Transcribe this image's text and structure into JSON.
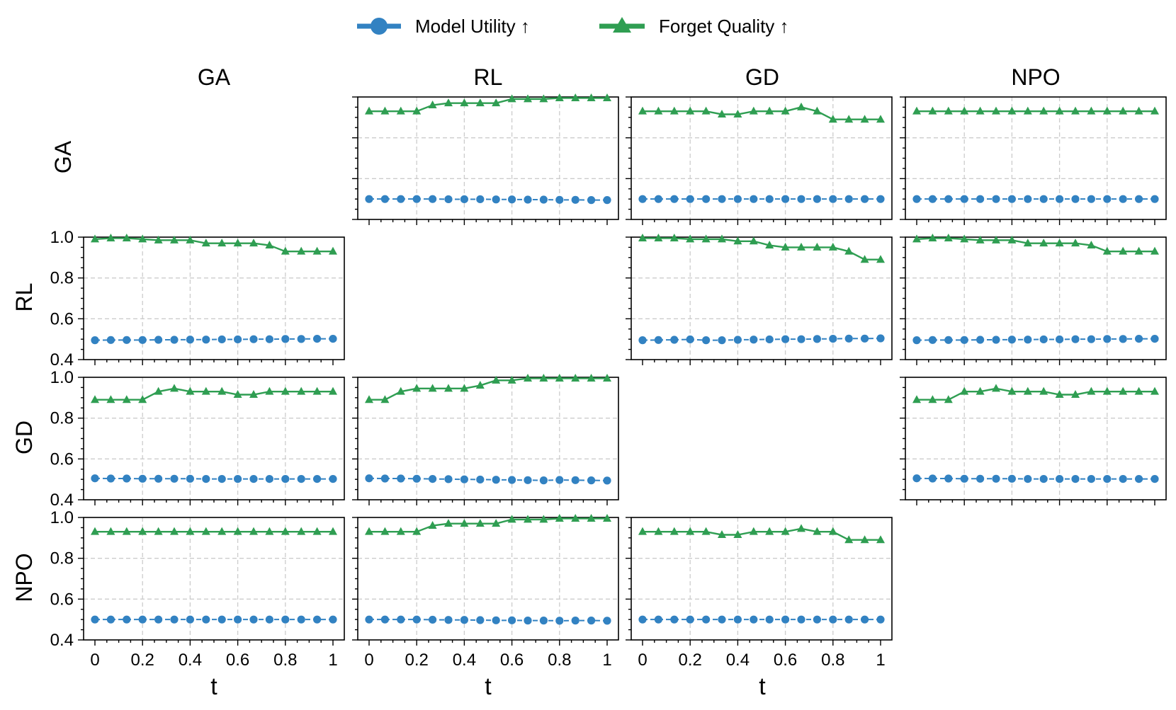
{
  "legend": {
    "items": [
      {
        "label": "Model Utility ↑",
        "series": "mu"
      },
      {
        "label": "Forget Quality ↑",
        "series": "fq"
      }
    ]
  },
  "colors": {
    "mu": "#3282c2",
    "fq": "#2f9e52",
    "grid": "#cccccc"
  },
  "col_titles": [
    "GA",
    "RL",
    "GD",
    "NPO"
  ],
  "row_titles": [
    "GA",
    "RL",
    "GD",
    "NPO"
  ],
  "xlabel": "t",
  "chart_data": {
    "type": "line",
    "title": "",
    "xlabel": "t",
    "ylabel": "",
    "xlim": [
      0,
      1
    ],
    "ylim": [
      0.4,
      1.0
    ],
    "x_ticks": [
      "0",
      "0.2",
      "0.4",
      "0.6",
      "0.8",
      "1"
    ],
    "y_ticks": [
      "0.4",
      "0.6",
      "0.8",
      "1.0"
    ],
    "x": [
      0,
      0.0667,
      0.1333,
      0.2,
      0.2667,
      0.3333,
      0.4,
      0.4667,
      0.5333,
      0.6,
      0.6667,
      0.7333,
      0.8,
      0.8667,
      0.9333,
      1.0
    ],
    "series_names": [
      "Model Utility ↑",
      "Forget Quality ↑"
    ],
    "panels": [
      {
        "row": "GA",
        "col": "RL",
        "mu": [
          0.5,
          0.5,
          0.5,
          0.5,
          0.5,
          0.499,
          0.499,
          0.499,
          0.498,
          0.498,
          0.497,
          0.497,
          0.496,
          0.496,
          0.495,
          0.495
        ],
        "fq": [
          0.93,
          0.93,
          0.93,
          0.93,
          0.96,
          0.97,
          0.97,
          0.97,
          0.97,
          0.99,
          0.99,
          0.99,
          0.995,
          0.995,
          0.995,
          0.995
        ]
      },
      {
        "row": "GA",
        "col": "GD",
        "mu": [
          0.5,
          0.5,
          0.5,
          0.5,
          0.5,
          0.5,
          0.5,
          0.5,
          0.5,
          0.5,
          0.5,
          0.5,
          0.5,
          0.5,
          0.5,
          0.5
        ],
        "fq": [
          0.93,
          0.93,
          0.93,
          0.93,
          0.93,
          0.915,
          0.915,
          0.93,
          0.93,
          0.93,
          0.95,
          0.93,
          0.89,
          0.89,
          0.89,
          0.89
        ]
      },
      {
        "row": "GA",
        "col": "NPO",
        "mu": [
          0.5,
          0.5,
          0.5,
          0.5,
          0.5,
          0.5,
          0.5,
          0.5,
          0.5,
          0.5,
          0.5,
          0.5,
          0.5,
          0.5,
          0.5,
          0.5
        ],
        "fq": [
          0.93,
          0.93,
          0.93,
          0.93,
          0.93,
          0.93,
          0.93,
          0.93,
          0.93,
          0.93,
          0.93,
          0.93,
          0.93,
          0.93,
          0.93,
          0.93
        ]
      },
      {
        "row": "RL",
        "col": "GA",
        "mu": [
          0.495,
          0.496,
          0.496,
          0.496,
          0.497,
          0.497,
          0.498,
          0.498,
          0.499,
          0.499,
          0.5,
          0.5,
          0.501,
          0.501,
          0.502,
          0.502
        ],
        "fq": [
          0.99,
          0.995,
          0.995,
          0.99,
          0.985,
          0.985,
          0.985,
          0.97,
          0.97,
          0.97,
          0.97,
          0.96,
          0.93,
          0.93,
          0.93,
          0.93
        ]
      },
      {
        "row": "RL",
        "col": "GD",
        "mu": [
          0.495,
          0.496,
          0.497,
          0.499,
          0.495,
          0.495,
          0.497,
          0.498,
          0.499,
          0.5,
          0.5,
          0.501,
          0.502,
          0.503,
          0.503,
          0.504
        ],
        "fq": [
          0.995,
          0.995,
          0.995,
          0.99,
          0.99,
          0.99,
          0.98,
          0.98,
          0.96,
          0.95,
          0.95,
          0.95,
          0.95,
          0.93,
          0.89,
          0.89
        ]
      },
      {
        "row": "RL",
        "col": "NPO",
        "mu": [
          0.495,
          0.496,
          0.496,
          0.496,
          0.497,
          0.497,
          0.498,
          0.498,
          0.499,
          0.499,
          0.5,
          0.5,
          0.501,
          0.501,
          0.502,
          0.502
        ],
        "fq": [
          0.99,
          0.995,
          0.995,
          0.99,
          0.985,
          0.985,
          0.985,
          0.97,
          0.97,
          0.97,
          0.97,
          0.96,
          0.93,
          0.93,
          0.93,
          0.93
        ]
      },
      {
        "row": "GD",
        "col": "GA",
        "mu": [
          0.505,
          0.504,
          0.504,
          0.503,
          0.503,
          0.503,
          0.503,
          0.502,
          0.502,
          0.502,
          0.502,
          0.502,
          0.502,
          0.502,
          0.502,
          0.502
        ],
        "fq": [
          0.89,
          0.89,
          0.89,
          0.89,
          0.93,
          0.945,
          0.93,
          0.93,
          0.93,
          0.915,
          0.915,
          0.93,
          0.93,
          0.93,
          0.93,
          0.93
        ]
      },
      {
        "row": "GD",
        "col": "RL",
        "mu": [
          0.505,
          0.504,
          0.504,
          0.503,
          0.502,
          0.501,
          0.5,
          0.499,
          0.498,
          0.497,
          0.496,
          0.495,
          0.497,
          0.496,
          0.495,
          0.494
        ],
        "fq": [
          0.89,
          0.89,
          0.93,
          0.945,
          0.945,
          0.945,
          0.945,
          0.96,
          0.985,
          0.985,
          0.995,
          0.995,
          0.995,
          0.995,
          0.995,
          0.995
        ]
      },
      {
        "row": "GD",
        "col": "NPO",
        "mu": [
          0.505,
          0.504,
          0.504,
          0.503,
          0.503,
          0.503,
          0.503,
          0.502,
          0.502,
          0.502,
          0.502,
          0.502,
          0.502,
          0.502,
          0.502,
          0.502
        ],
        "fq": [
          0.89,
          0.89,
          0.89,
          0.93,
          0.93,
          0.945,
          0.93,
          0.93,
          0.93,
          0.915,
          0.915,
          0.93,
          0.93,
          0.93,
          0.93,
          0.93
        ]
      },
      {
        "row": "NPO",
        "col": "GA",
        "mu": [
          0.5,
          0.5,
          0.5,
          0.5,
          0.5,
          0.5,
          0.5,
          0.5,
          0.5,
          0.5,
          0.5,
          0.5,
          0.5,
          0.5,
          0.5,
          0.5
        ],
        "fq": [
          0.93,
          0.93,
          0.93,
          0.93,
          0.93,
          0.93,
          0.93,
          0.93,
          0.93,
          0.93,
          0.93,
          0.93,
          0.93,
          0.93,
          0.93,
          0.93
        ]
      },
      {
        "row": "NPO",
        "col": "RL",
        "mu": [
          0.5,
          0.5,
          0.5,
          0.5,
          0.499,
          0.498,
          0.498,
          0.497,
          0.496,
          0.496,
          0.495,
          0.495,
          0.494,
          0.495,
          0.495,
          0.494
        ],
        "fq": [
          0.93,
          0.93,
          0.93,
          0.93,
          0.96,
          0.97,
          0.97,
          0.97,
          0.97,
          0.99,
          0.99,
          0.99,
          0.995,
          0.995,
          0.995,
          0.995
        ]
      },
      {
        "row": "NPO",
        "col": "GD",
        "mu": [
          0.5,
          0.5,
          0.5,
          0.5,
          0.5,
          0.5,
          0.5,
          0.5,
          0.5,
          0.5,
          0.5,
          0.5,
          0.5,
          0.5,
          0.5,
          0.5
        ],
        "fq": [
          0.93,
          0.93,
          0.93,
          0.93,
          0.93,
          0.915,
          0.915,
          0.93,
          0.93,
          0.93,
          0.945,
          0.93,
          0.93,
          0.89,
          0.89,
          0.89
        ]
      }
    ]
  }
}
